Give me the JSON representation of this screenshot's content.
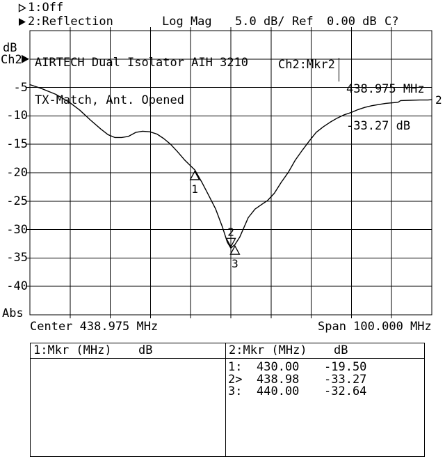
{
  "colors": {
    "background": "#ffffff",
    "foreground": "#000000"
  },
  "header": {
    "channel1": {
      "status": "1:Off",
      "active": false
    },
    "channel2": {
      "measurement": "2:Reflection",
      "format": "Log Mag",
      "scale": "5.0 dB/",
      "ref_label": "Ref",
      "ref_value": "0.00 dB",
      "cal_status": "C?",
      "active": true
    }
  },
  "axis_left": {
    "unit": "dB",
    "channel": "Ch2",
    "mode": "Abs",
    "ticks": [
      "-5",
      "-10",
      "-15",
      "-20",
      "-25",
      "-30",
      "-35",
      "-40"
    ]
  },
  "title": {
    "line1": "AIRTECH Dual Isolator AIH 3210",
    "line2": "TX-Match, Ant. Opened"
  },
  "marker_readout": {
    "label": "Ch2:Mkr2",
    "freq": "438.975 MHz",
    "level": "-33.27 dB"
  },
  "footer": {
    "center": "Center 438.975 MHz",
    "span": "Span 100.000 MHz"
  },
  "chart_data": {
    "type": "line",
    "title": "AIRTECH Dual Isolator AIH 3210 / TX-Match, Ant. Opened",
    "ylabel": "dB (Abs, Log Mag, 5.0 dB/div, Ref 0.00 dB)",
    "xlabel": "Frequency (Center 438.975 MHz, Span 100.000 MHz)",
    "x_start_mhz": 388.975,
    "x_stop_mhz": 488.975,
    "y_top_db": 5,
    "y_bottom_db": -45,
    "db_per_div": 5,
    "ref_db": 0,
    "x_divisions": 10,
    "y_divisions": 10,
    "grid": true,
    "trace_label": "2",
    "series": [
      {
        "name": "Ch2 Reflection Log Mag",
        "points_mhz_db": [
          [
            388.975,
            -4.5
          ],
          [
            391.9,
            -5.2
          ],
          [
            395.4,
            -6.2
          ],
          [
            398.8,
            -7.6
          ],
          [
            401.4,
            -9.0
          ],
          [
            404.0,
            -10.7
          ],
          [
            406.6,
            -12.3
          ],
          [
            408.4,
            -13.3
          ],
          [
            410.1,
            -13.8
          ],
          [
            411.8,
            -13.8
          ],
          [
            413.5,
            -13.6
          ],
          [
            415.3,
            -12.9
          ],
          [
            417.0,
            -12.7
          ],
          [
            418.8,
            -12.8
          ],
          [
            420.6,
            -13.2
          ],
          [
            422.3,
            -14.0
          ],
          [
            424.0,
            -15.0
          ],
          [
            425.7,
            -16.3
          ],
          [
            427.4,
            -17.7
          ],
          [
            428.7,
            -18.6
          ],
          [
            430.0,
            -19.5
          ],
          [
            431.7,
            -21.6
          ],
          [
            433.4,
            -23.9
          ],
          [
            435.2,
            -26.4
          ],
          [
            436.9,
            -29.6
          ],
          [
            438.1,
            -32.2
          ],
          [
            438.98,
            -33.27
          ],
          [
            440.0,
            -32.64
          ],
          [
            441.2,
            -31.3
          ],
          [
            443.3,
            -27.9
          ],
          [
            445.0,
            -26.4
          ],
          [
            446.8,
            -25.5
          ],
          [
            448.1,
            -24.9
          ],
          [
            449.8,
            -23.6
          ],
          [
            451.5,
            -21.7
          ],
          [
            453.3,
            -19.9
          ],
          [
            455.0,
            -17.8
          ],
          [
            456.8,
            -16.0
          ],
          [
            458.5,
            -14.4
          ],
          [
            460.2,
            -12.9
          ],
          [
            462.0,
            -11.9
          ],
          [
            463.7,
            -11.1
          ],
          [
            465.4,
            -10.4
          ],
          [
            467.2,
            -9.8
          ],
          [
            468.9,
            -9.4
          ],
          [
            470.6,
            -8.9
          ],
          [
            472.3,
            -8.5
          ],
          [
            474.1,
            -8.2
          ],
          [
            475.8,
            -8.0
          ],
          [
            477.5,
            -7.8
          ],
          [
            479.2,
            -7.7
          ],
          [
            480.6,
            -7.6
          ],
          [
            481.2,
            -7.3
          ],
          [
            483.5,
            -7.25
          ],
          [
            486.0,
            -7.2
          ],
          [
            488.0,
            -7.2
          ],
          [
            488.975,
            -7.15
          ]
        ]
      }
    ],
    "markers": [
      {
        "label": "1",
        "mhz": 430.0,
        "db": -19.5,
        "style": "up",
        "active": false
      },
      {
        "label": "2",
        "mhz": 438.98,
        "db": -33.27,
        "style": "down",
        "active": true
      },
      {
        "label": "3",
        "mhz": 440.0,
        "db": -32.64,
        "style": "up",
        "active": false
      }
    ]
  },
  "marker_table": {
    "col1": {
      "header_label": "1:Mkr (MHz)",
      "header_unit": "dB",
      "rows": []
    },
    "col2": {
      "header_label": "2:Mkr (MHz)",
      "header_unit": "dB",
      "rows": [
        {
          "num": "1:",
          "freq": "430.00",
          "db": "-19.50"
        },
        {
          "num": "2>",
          "freq": "438.98",
          "db": "-33.27"
        },
        {
          "num": "3:",
          "freq": "440.00",
          "db": "-32.64"
        }
      ]
    }
  }
}
